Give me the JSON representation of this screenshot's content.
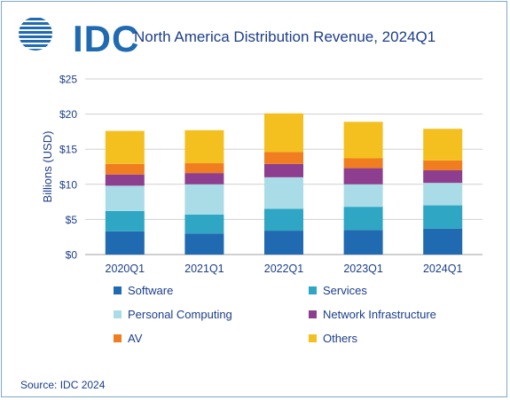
{
  "header": {
    "logo_text": "IDC",
    "title": "North America Distribution Revenue, 2024Q1"
  },
  "source": "Source: IDC 2024",
  "chart_data": {
    "type": "bar",
    "stacked": true,
    "title": "North America Distribution Revenue, 2024Q1",
    "xlabel": "",
    "ylabel": "Billions (USD)",
    "ylim": [
      0,
      25
    ],
    "yticks": [
      "$0",
      "$5",
      "$10",
      "$15",
      "$20",
      "$25"
    ],
    "grid": true,
    "legend_position": "bottom",
    "categories": [
      "2020Q1",
      "2021Q1",
      "2022Q1",
      "2023Q1",
      "2024Q1"
    ],
    "series": [
      {
        "name": "Software",
        "color": "#1f6ab0",
        "values": [
          3.3,
          3.0,
          3.4,
          3.5,
          3.7
        ]
      },
      {
        "name": "Services",
        "color": "#2fa6c4",
        "values": [
          2.9,
          2.7,
          3.1,
          3.3,
          3.3
        ]
      },
      {
        "name": "Personal Computing",
        "color": "#a9dce6",
        "values": [
          3.6,
          4.3,
          4.5,
          3.2,
          3.2
        ]
      },
      {
        "name": "Network Infrastructure",
        "color": "#8e3e8f",
        "values": [
          1.6,
          1.6,
          1.9,
          2.3,
          1.8
        ]
      },
      {
        "name": "AV",
        "color": "#f07d1f",
        "values": [
          1.5,
          1.4,
          1.7,
          1.4,
          1.4
        ]
      },
      {
        "name": "Others",
        "color": "#f4c020",
        "values": [
          4.7,
          4.7,
          5.5,
          5.2,
          4.5
        ]
      }
    ]
  }
}
